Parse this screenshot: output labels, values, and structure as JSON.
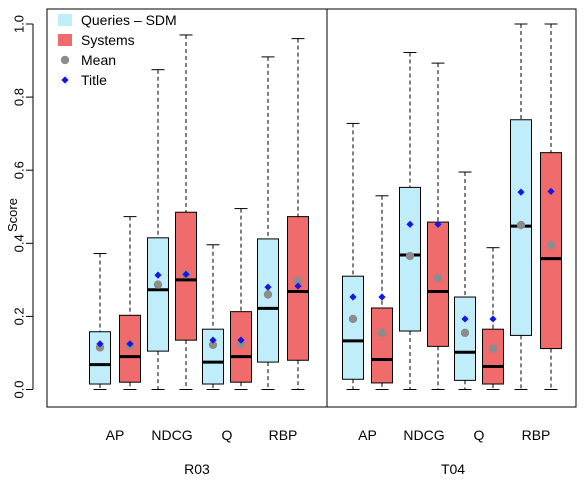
{
  "chart_data": {
    "type": "box",
    "ylabel": "Score",
    "ylim": [
      0,
      1
    ],
    "yticks": [
      "0.0",
      "0.2",
      "0.4",
      "0.6",
      "0.8",
      "1.0"
    ],
    "legend": {
      "position": "top-left",
      "entries": [
        {
          "label": "Queries – SDM",
          "symbol": "box",
          "color": "#bfeefa"
        },
        {
          "label": "Systems",
          "symbol": "box",
          "color": "#f06b6b"
        },
        {
          "label": "Mean",
          "symbol": "circle",
          "color": "#8c8c8c"
        },
        {
          "label": "Title",
          "symbol": "diamond",
          "color": "#1515e6"
        }
      ]
    },
    "colors": {
      "queries": "#bfeefa",
      "systems": "#f06b6b",
      "mean": "#8c8c8c",
      "title": "#1515e6"
    },
    "panels": [
      {
        "name": "R03",
        "groups": [
          {
            "metric": "AP",
            "queries": {
              "min": 0.0,
              "q1": 0.015,
              "median": 0.068,
              "q3": 0.158,
              "max": 0.372,
              "mean": 0.115,
              "title": 0.125
            },
            "systems": {
              "min": 0.0,
              "q1": 0.02,
              "median": 0.09,
              "q3": 0.203,
              "max": 0.473,
              "mean": 0.12,
              "title": 0.125
            }
          },
          {
            "metric": "NDCG",
            "queries": {
              "min": 0.0,
              "q1": 0.105,
              "median": 0.273,
              "q3": 0.415,
              "max": 0.875,
              "mean": 0.287,
              "title": 0.313
            },
            "systems": {
              "min": 0.0,
              "q1": 0.135,
              "median": 0.3,
              "q3": 0.485,
              "max": 0.97,
              "mean": 0.315,
              "title": 0.315
            }
          },
          {
            "metric": "Q",
            "queries": {
              "min": 0.0,
              "q1": 0.015,
              "median": 0.075,
              "q3": 0.165,
              "max": 0.396,
              "mean": 0.122,
              "title": 0.135
            },
            "systems": {
              "min": 0.0,
              "q1": 0.02,
              "median": 0.09,
              "q3": 0.213,
              "max": 0.495,
              "mean": 0.125,
              "title": 0.135
            }
          },
          {
            "metric": "RBP",
            "queries": {
              "min": 0.0,
              "q1": 0.075,
              "median": 0.222,
              "q3": 0.412,
              "max": 0.91,
              "mean": 0.26,
              "title": 0.28
            },
            "systems": {
              "min": 0.0,
              "q1": 0.08,
              "median": 0.268,
              "q3": 0.473,
              "max": 0.96,
              "mean": 0.298,
              "title": 0.283
            }
          }
        ]
      },
      {
        "name": "T04",
        "groups": [
          {
            "metric": "AP",
            "queries": {
              "min": 0.0,
              "q1": 0.028,
              "median": 0.133,
              "q3": 0.31,
              "max": 0.728,
              "mean": 0.193,
              "title": 0.253
            },
            "systems": {
              "min": 0.0,
              "q1": 0.018,
              "median": 0.082,
              "q3": 0.223,
              "max": 0.53,
              "mean": 0.155,
              "title": 0.253
            }
          },
          {
            "metric": "NDCG",
            "queries": {
              "min": 0.0,
              "q1": 0.16,
              "median": 0.368,
              "q3": 0.553,
              "max": 0.922,
              "mean": 0.365,
              "title": 0.452
            },
            "systems": {
              "min": 0.0,
              "q1": 0.118,
              "median": 0.268,
              "q3": 0.458,
              "max": 0.893,
              "mean": 0.305,
              "title": 0.452
            }
          },
          {
            "metric": "Q",
            "queries": {
              "min": 0.0,
              "q1": 0.025,
              "median": 0.102,
              "q3": 0.253,
              "max": 0.595,
              "mean": 0.155,
              "title": 0.193
            },
            "systems": {
              "min": 0.0,
              "q1": 0.015,
              "median": 0.063,
              "q3": 0.165,
              "max": 0.388,
              "mean": 0.112,
              "title": 0.193
            }
          },
          {
            "metric": "RBP",
            "queries": {
              "min": 0.0,
              "q1": 0.148,
              "median": 0.447,
              "q3": 0.738,
              "max": 1.0,
              "mean": 0.45,
              "title": 0.54
            },
            "systems": {
              "min": 0.0,
              "q1": 0.112,
              "median": 0.358,
              "q3": 0.648,
              "max": 1.0,
              "mean": 0.395,
              "title": 0.542
            }
          }
        ]
      }
    ]
  }
}
